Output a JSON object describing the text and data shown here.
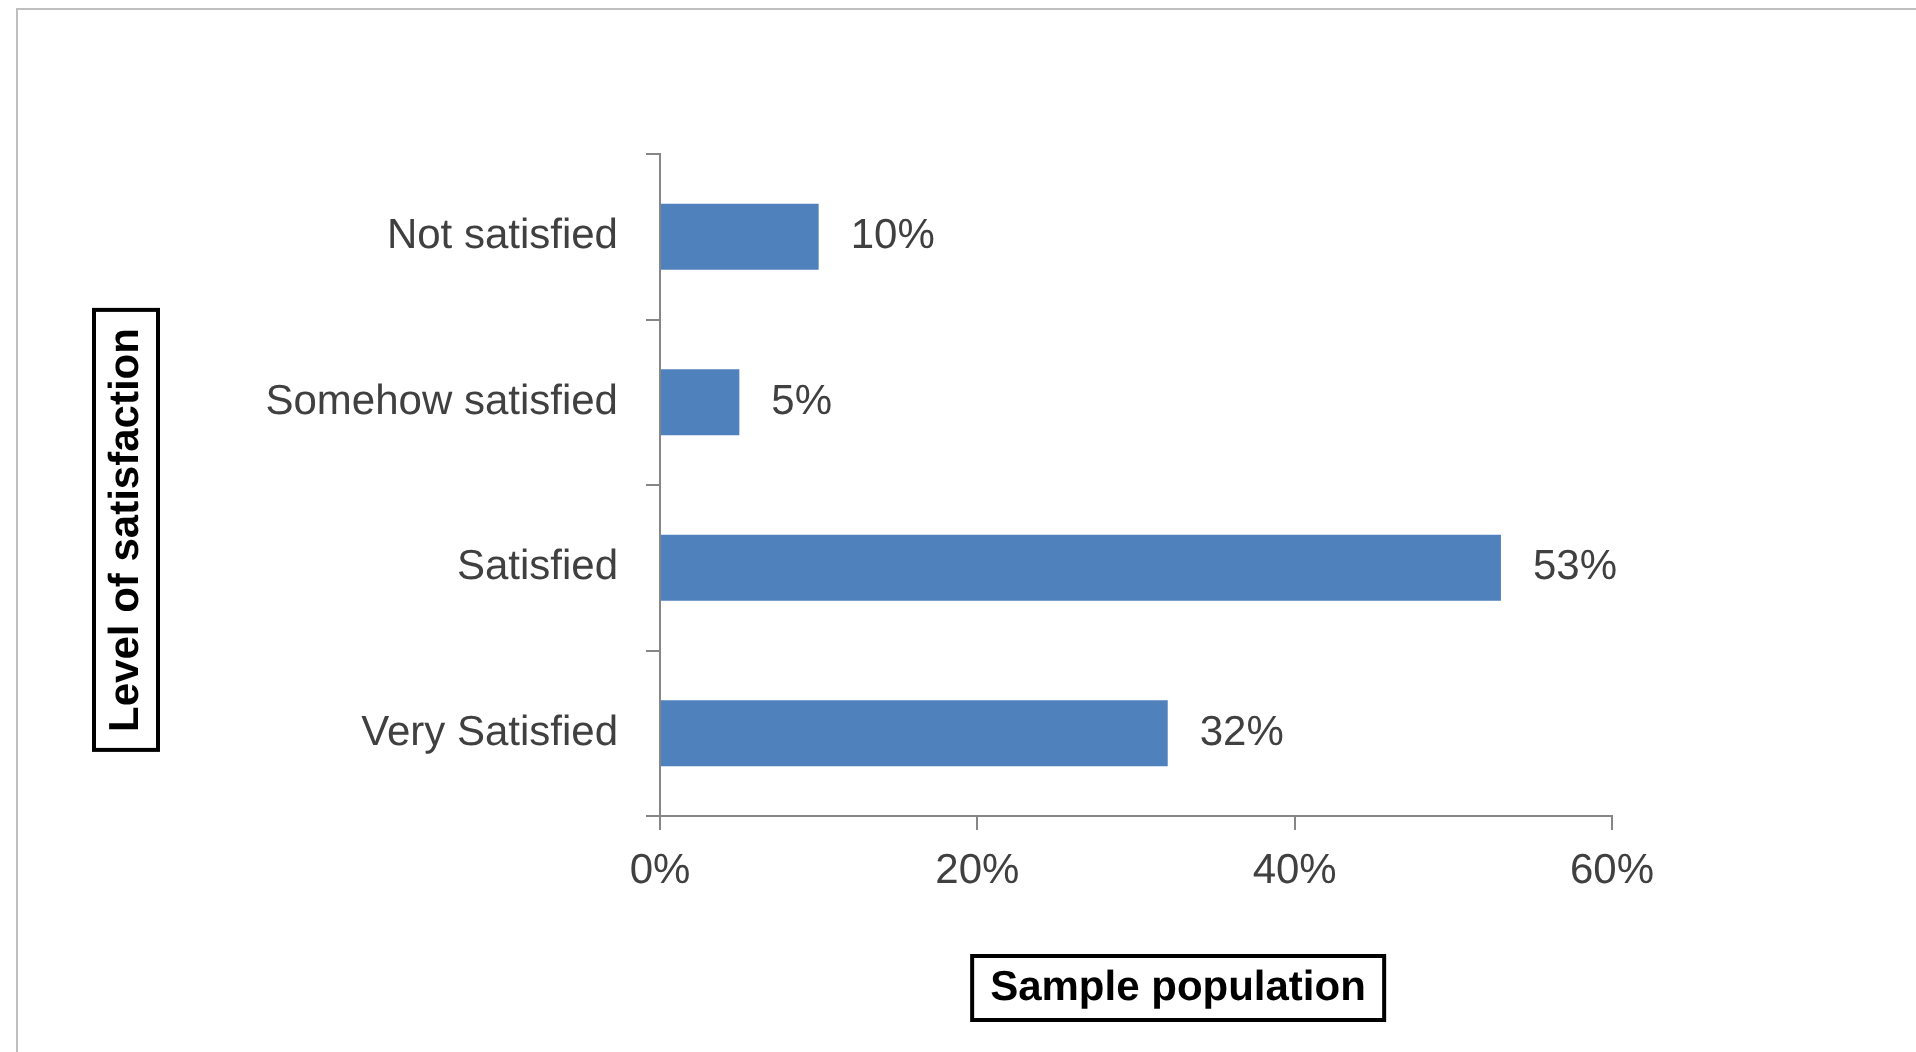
{
  "chart_data": {
    "type": "bar",
    "orientation": "horizontal",
    "xlabel": "Sample population",
    "ylabel": "Level of satisfaction",
    "categories": [
      "Not satisfied",
      "Somehow satisfied",
      "Satisfied",
      "Very Satisfied"
    ],
    "values": [
      10,
      5,
      53,
      32
    ],
    "color": "#4f81bd",
    "value_labels": [
      "10%",
      "5%",
      "53%",
      "32%"
    ],
    "xlim": [
      0,
      60
    ],
    "xticks": [
      {
        "value": 0,
        "label": "0%"
      },
      {
        "value": 20,
        "label": "20%"
      },
      {
        "value": 40,
        "label": "40%"
      },
      {
        "value": 60,
        "label": "60%"
      }
    ],
    "grid": false,
    "legend": false
  }
}
